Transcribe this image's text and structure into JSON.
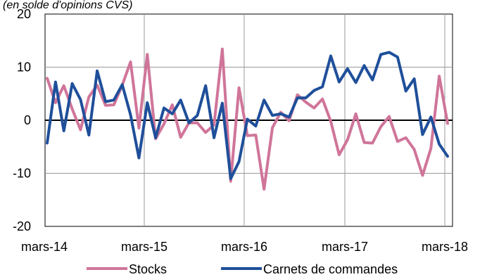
{
  "chart_data": {
    "type": "line",
    "subtitle": "(en solde d'opinions CVS)",
    "ylim": [
      -20,
      20
    ],
    "yticks": [
      20,
      10,
      0,
      -10,
      -20
    ],
    "x_tick_labels": [
      "mars-14",
      "mars-15",
      "mars-16",
      "mars-17",
      "mars-18"
    ],
    "grid": true,
    "legend_position": "bottom",
    "series": [
      {
        "name": "Stocks",
        "color": "#d0759a",
        "values": [
          7.9,
          3.3,
          6.5,
          2.1,
          -1.8,
          4.4,
          6.6,
          2.8,
          2.9,
          6.6,
          11.0,
          -1.5,
          12.4,
          -3.5,
          -0.7,
          2.9,
          -3.2,
          -0.5,
          -0.5,
          -2.3,
          -0.9,
          13.4,
          -11.5,
          6.1,
          -2.9,
          -2.8,
          -13.0,
          -1.4,
          1.5,
          -0.1,
          4.8,
          3.4,
          2.3,
          4.0,
          -0.2,
          -6.5,
          -3.7,
          1.2,
          -4.2,
          -4.3,
          -1.2,
          0.7,
          -4.0,
          -3.3,
          -5.5,
          -10.4,
          -5.3,
          8.3,
          -0.6
        ]
      },
      {
        "name": "Carnets de commandes",
        "color": "#1f4f9a",
        "values": [
          -4.3,
          7.2,
          -2.0,
          6.9,
          3.9,
          -2.8,
          9.3,
          3.5,
          3.8,
          6.7,
          1.0,
          -7.1,
          3.3,
          -3.3,
          2.3,
          1.2,
          3.8,
          -0.5,
          0.9,
          6.5,
          -3.3,
          3.2,
          -11.0,
          -7.8,
          0.2,
          -1.1,
          3.8,
          0.9,
          1.2,
          0.6,
          4.2,
          4.2,
          5.6,
          6.3,
          12.1,
          7.2,
          9.7,
          7.1,
          10.3,
          7.6,
          12.4,
          12.8,
          11.9,
          5.5,
          7.8,
          -2.7,
          0.6,
          -4.5,
          -6.8
        ]
      }
    ]
  }
}
